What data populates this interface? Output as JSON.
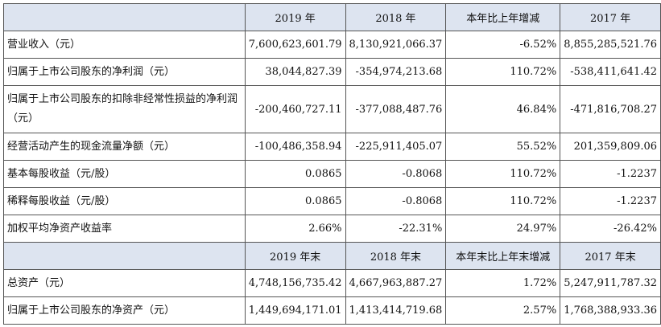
{
  "header1": [
    "",
    "2019 年",
    "2018 年",
    "本年比上年增减",
    "2017 年"
  ],
  "rows1": [
    [
      "营业收入（元）",
      "7,600,623,601.79",
      "8,130,921,066.37",
      "-6.52%",
      "8,855,285,521.76"
    ],
    [
      "归属于上市公司股东的净利润（元）",
      "38,044,827.39",
      "-354,974,213.68",
      "110.72%",
      "-538,411,641.42"
    ],
    [
      "归属于上市公司股东的扣除非经常性损益的净利润（元）",
      "-200,460,727.11",
      "-377,088,487.76",
      "46.84%",
      "-471,816,708.27"
    ],
    [
      "经营活动产生的现金流量净额（元）",
      "-100,486,358.94",
      "-225,911,405.07",
      "55.52%",
      "201,359,809.06"
    ],
    [
      "基本每股收益（元/股）",
      "0.0865",
      "-0.8068",
      "110.72%",
      "-1.2237"
    ],
    [
      "稀释每股收益（元/股）",
      "0.0865",
      "-0.8068",
      "110.72%",
      "-1.2237"
    ],
    [
      "加权平均净资产收益率",
      "2.66%",
      "-22.31%",
      "24.97%",
      "-26.42%"
    ]
  ],
  "header2": [
    "",
    "2019 年末",
    "2018 年末",
    "本年末比上年末增减",
    "2017 年末"
  ],
  "rows2": [
    [
      "总资产（元）",
      "4,748,156,735.42",
      "4,667,963,887.27",
      "1.72%",
      "5,247,911,787.32"
    ],
    [
      "归属于上市公司股东的净资产（元）",
      "1,449,694,171.01",
      "1,413,414,719.68",
      "2.57%",
      "1,768,388,933.36"
    ]
  ]
}
